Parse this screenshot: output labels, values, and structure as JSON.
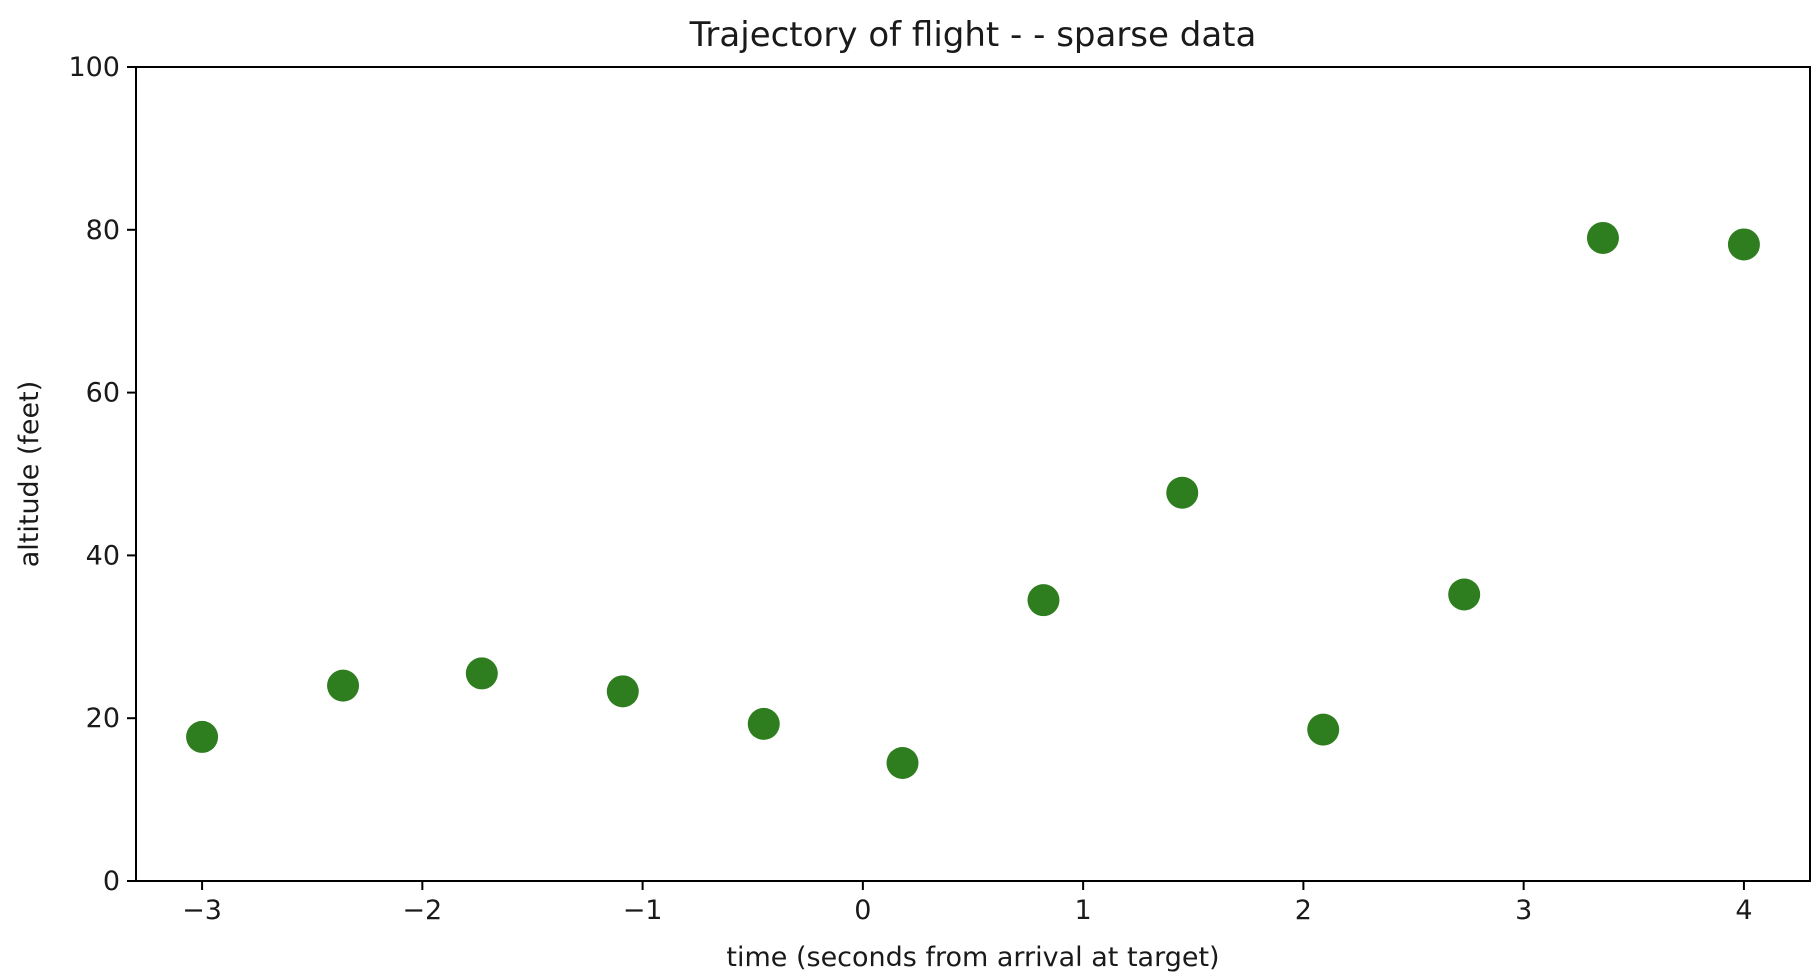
{
  "chart_data": {
    "type": "scatter",
    "title": "Trajectory of flight -  -  sparse data",
    "xlabel": "time (seconds from arrival at target)",
    "ylabel": "altitude (feet)",
    "xlim": [
      -3.3,
      4.3
    ],
    "ylim": [
      0,
      100
    ],
    "xticks": [
      -3,
      -2,
      -1,
      0,
      1,
      2,
      3,
      4
    ],
    "xtick_labels": [
      "−3",
      "−2",
      "−1",
      "0",
      "1",
      "2",
      "3",
      "4"
    ],
    "yticks": [
      0,
      20,
      40,
      60,
      80,
      100
    ],
    "ytick_labels": [
      "0",
      "20",
      "40",
      "60",
      "80",
      "100"
    ],
    "grid": false,
    "marker_color": "#2e7d1e",
    "series": [
      {
        "x": [
          -3.0,
          -2.36,
          -1.73,
          -1.09,
          -0.45,
          0.18,
          0.82,
          1.45,
          2.09,
          2.73,
          3.36,
          4.0
        ],
        "y": [
          17.7,
          24.0,
          25.5,
          23.3,
          19.3,
          14.5,
          34.5,
          47.7,
          18.6,
          35.2,
          79.0,
          78.2
        ]
      }
    ]
  }
}
